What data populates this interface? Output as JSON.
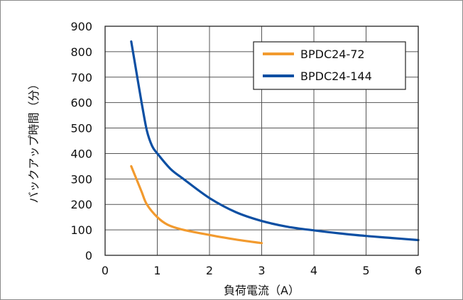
{
  "chart_data": {
    "type": "line",
    "xlabel": "負荷電流（A）",
    "ylabel": "バックアップ時間（分）",
    "xlim": [
      0,
      6
    ],
    "ylim": [
      0,
      900
    ],
    "x_ticks": [
      "0",
      "1",
      "2",
      "3",
      "4",
      "5",
      "6"
    ],
    "y_ticks": [
      "0",
      "100",
      "200",
      "300",
      "400",
      "500",
      "600",
      "700",
      "800",
      "900"
    ],
    "grid": true,
    "legend_position": "top-right",
    "series": [
      {
        "name": "BPDC24-72",
        "color": "#f29a2e",
        "x": [
          0.5,
          0.6,
          0.7,
          0.8,
          1.0,
          1.2,
          1.5,
          2.0,
          2.5,
          3.0
        ],
        "y": [
          350,
          300,
          250,
          200,
          150,
          120,
          100,
          80,
          62,
          48
        ]
      },
      {
        "name": "BPDC24-144",
        "color": "#0c4fa3",
        "x": [
          0.5,
          0.6,
          0.7,
          0.8,
          0.9,
          1.0,
          1.25,
          1.5,
          2.0,
          2.5,
          3.0,
          3.5,
          4.0,
          4.5,
          5.0,
          5.5,
          6.0
        ],
        "y": [
          840,
          720,
          600,
          490,
          430,
          400,
          340,
          300,
          225,
          170,
          135,
          112,
          98,
          86,
          76,
          68,
          60
        ]
      }
    ]
  }
}
